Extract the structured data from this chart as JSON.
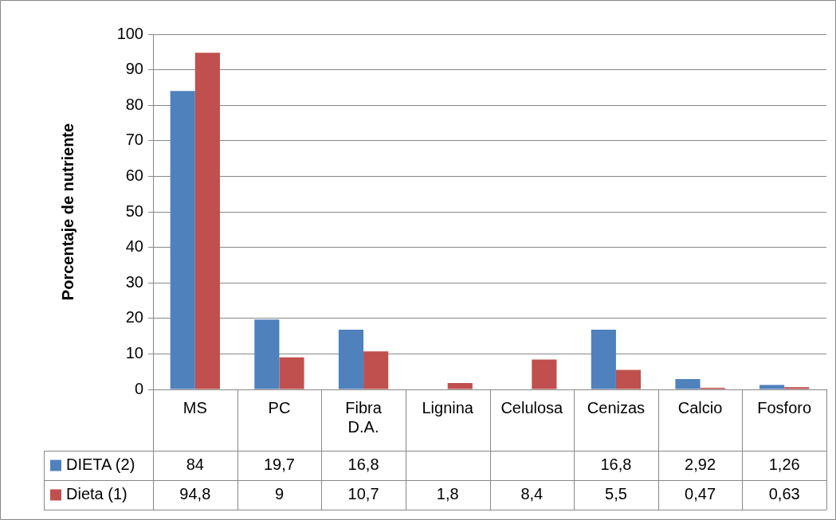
{
  "chart_data": {
    "type": "bar",
    "ylabel": "Porcentaje de nutriente",
    "categories": [
      "MS",
      "PC",
      "Fibra D.A.",
      "Lignina",
      "Celulosa",
      "Cenizas",
      "Calcio",
      "Fosforo"
    ],
    "series": [
      {
        "name": "DIETA (2)",
        "color": "#4f81bd",
        "values": [
          84,
          19.7,
          16.8,
          null,
          null,
          16.8,
          2.92,
          1.26
        ],
        "value_labels": [
          "84",
          "19,7",
          "16,8",
          null,
          null,
          "16,8",
          "2,92",
          "1,26"
        ]
      },
      {
        "name": "Dieta (1)",
        "color": "#c0504d",
        "values": [
          94.8,
          9,
          10.7,
          1.8,
          8.4,
          5.5,
          0.47,
          0.63
        ],
        "value_labels": [
          "94,8",
          "9",
          "10,7",
          "1,8",
          "8,4",
          "5,5",
          "0,47",
          "0,63"
        ]
      }
    ],
    "ylim": [
      0,
      100
    ],
    "yticks": [
      0,
      10,
      20,
      30,
      40,
      50,
      60,
      70,
      80,
      90,
      100
    ],
    "grid": "y",
    "legend": "bottom left"
  }
}
